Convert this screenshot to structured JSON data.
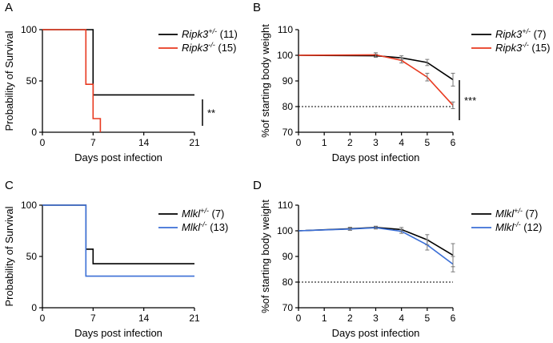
{
  "figure_title": "",
  "chart_data": [
    {
      "panel": "A",
      "type": "line",
      "subtype": "kaplan-meier",
      "xlabel": "Days post infection",
      "ylabel": "Probability of Survival",
      "xlim": [
        0,
        21
      ],
      "ylim": [
        0,
        100
      ],
      "xticks": [
        "0",
        "7",
        "14",
        "21"
      ],
      "yticks": [
        "0",
        "50",
        "100"
      ],
      "series": [
        {
          "name": "Ripk3",
          "superscript": "+/-",
          "n": "(11)",
          "color": "#000000",
          "steps": [
            [
              0,
              100
            ],
            [
              7,
              100
            ],
            [
              7,
              36.4
            ],
            [
              21,
              36.4
            ]
          ]
        },
        {
          "name": "Ripk3",
          "superscript": "-/-",
          "n": "(15)",
          "color": "#e8391f",
          "steps": [
            [
              0,
              100
            ],
            [
              6,
              100
            ],
            [
              6,
              46.7
            ],
            [
              7,
              46.7
            ],
            [
              7,
              13.3
            ],
            [
              8,
              13.3
            ],
            [
              8,
              0
            ]
          ]
        }
      ],
      "significance": "**"
    },
    {
      "panel": "B",
      "type": "line",
      "xlabel": "Days post infection",
      "ylabel": "%of starting body weight",
      "xlim": [
        0,
        6
      ],
      "ylim": [
        70,
        110
      ],
      "xticks": [
        "0",
        "1",
        "2",
        "3",
        "4",
        "5",
        "6"
      ],
      "yticks": [
        "70",
        "80",
        "90",
        "100",
        "110"
      ],
      "reference_line": 80,
      "series": [
        {
          "name": "Ripk3",
          "superscript": "+/-",
          "n": "(7)",
          "color": "#000000",
          "x": [
            0,
            3,
            4,
            5,
            6
          ],
          "y": [
            100,
            99.8,
            99,
            97.2,
            90.5
          ],
          "err": [
            0,
            0.6,
            0.8,
            1.2,
            2.5
          ]
        },
        {
          "name": "Ripk3",
          "superscript": "-/-",
          "n": "(15)",
          "color": "#e8391f",
          "x": [
            0,
            3,
            4,
            5,
            6
          ],
          "y": [
            100,
            100.2,
            98,
            91.5,
            80.5
          ],
          "err": [
            0,
            0.8,
            1,
            1.5,
            1.3
          ]
        }
      ],
      "significance": "***"
    },
    {
      "panel": "C",
      "type": "line",
      "subtype": "kaplan-meier",
      "xlabel": "Days post infection",
      "ylabel": "Probability of Survival",
      "xlim": [
        0,
        21
      ],
      "ylim": [
        0,
        100
      ],
      "xticks": [
        "0",
        "7",
        "14",
        "21"
      ],
      "yticks": [
        "0",
        "50",
        "100"
      ],
      "series": [
        {
          "name": "Mlkl",
          "superscript": "+/-",
          "n": "(7)",
          "color": "#000000",
          "steps": [
            [
              0,
              100
            ],
            [
              6,
              100
            ],
            [
              6,
              57.1
            ],
            [
              7,
              57.1
            ],
            [
              7,
              42.9
            ],
            [
              21,
              42.9
            ]
          ]
        },
        {
          "name": "Mlkl",
          "superscript": "-/-",
          "n": "(13)",
          "color": "#3b6fd6",
          "steps": [
            [
              0,
              100
            ],
            [
              6,
              100
            ],
            [
              6,
              30.8
            ],
            [
              21,
              30.8
            ]
          ]
        }
      ],
      "significance": ""
    },
    {
      "panel": "D",
      "type": "line",
      "xlabel": "Days post infection",
      "ylabel": "%of starting body weight",
      "xlim": [
        0,
        6
      ],
      "ylim": [
        70,
        110
      ],
      "xticks": [
        "0",
        "1",
        "2",
        "3",
        "4",
        "5",
        "6"
      ],
      "yticks": [
        "70",
        "80",
        "90",
        "100",
        "110"
      ],
      "reference_line": 80,
      "series": [
        {
          "name": "Mlkl",
          "superscript": "+/-",
          "n": "(7)",
          "color": "#000000",
          "x": [
            0,
            2,
            3,
            4,
            5,
            6
          ],
          "y": [
            100,
            100.8,
            101.3,
            100.5,
            96.5,
            90.5
          ],
          "err": [
            0,
            0.6,
            0.5,
            0.8,
            2.0,
            4.5
          ]
        },
        {
          "name": "Mlkl",
          "superscript": "-/-",
          "n": "(12)",
          "color": "#3b6fd6",
          "x": [
            0,
            2,
            3,
            4,
            5,
            6
          ],
          "y": [
            100,
            100.7,
            101.2,
            99.8,
            94.5,
            87
          ],
          "err": [
            0,
            0.5,
            0.5,
            0.8,
            2.0,
            3.0
          ]
        }
      ],
      "significance": ""
    }
  ]
}
